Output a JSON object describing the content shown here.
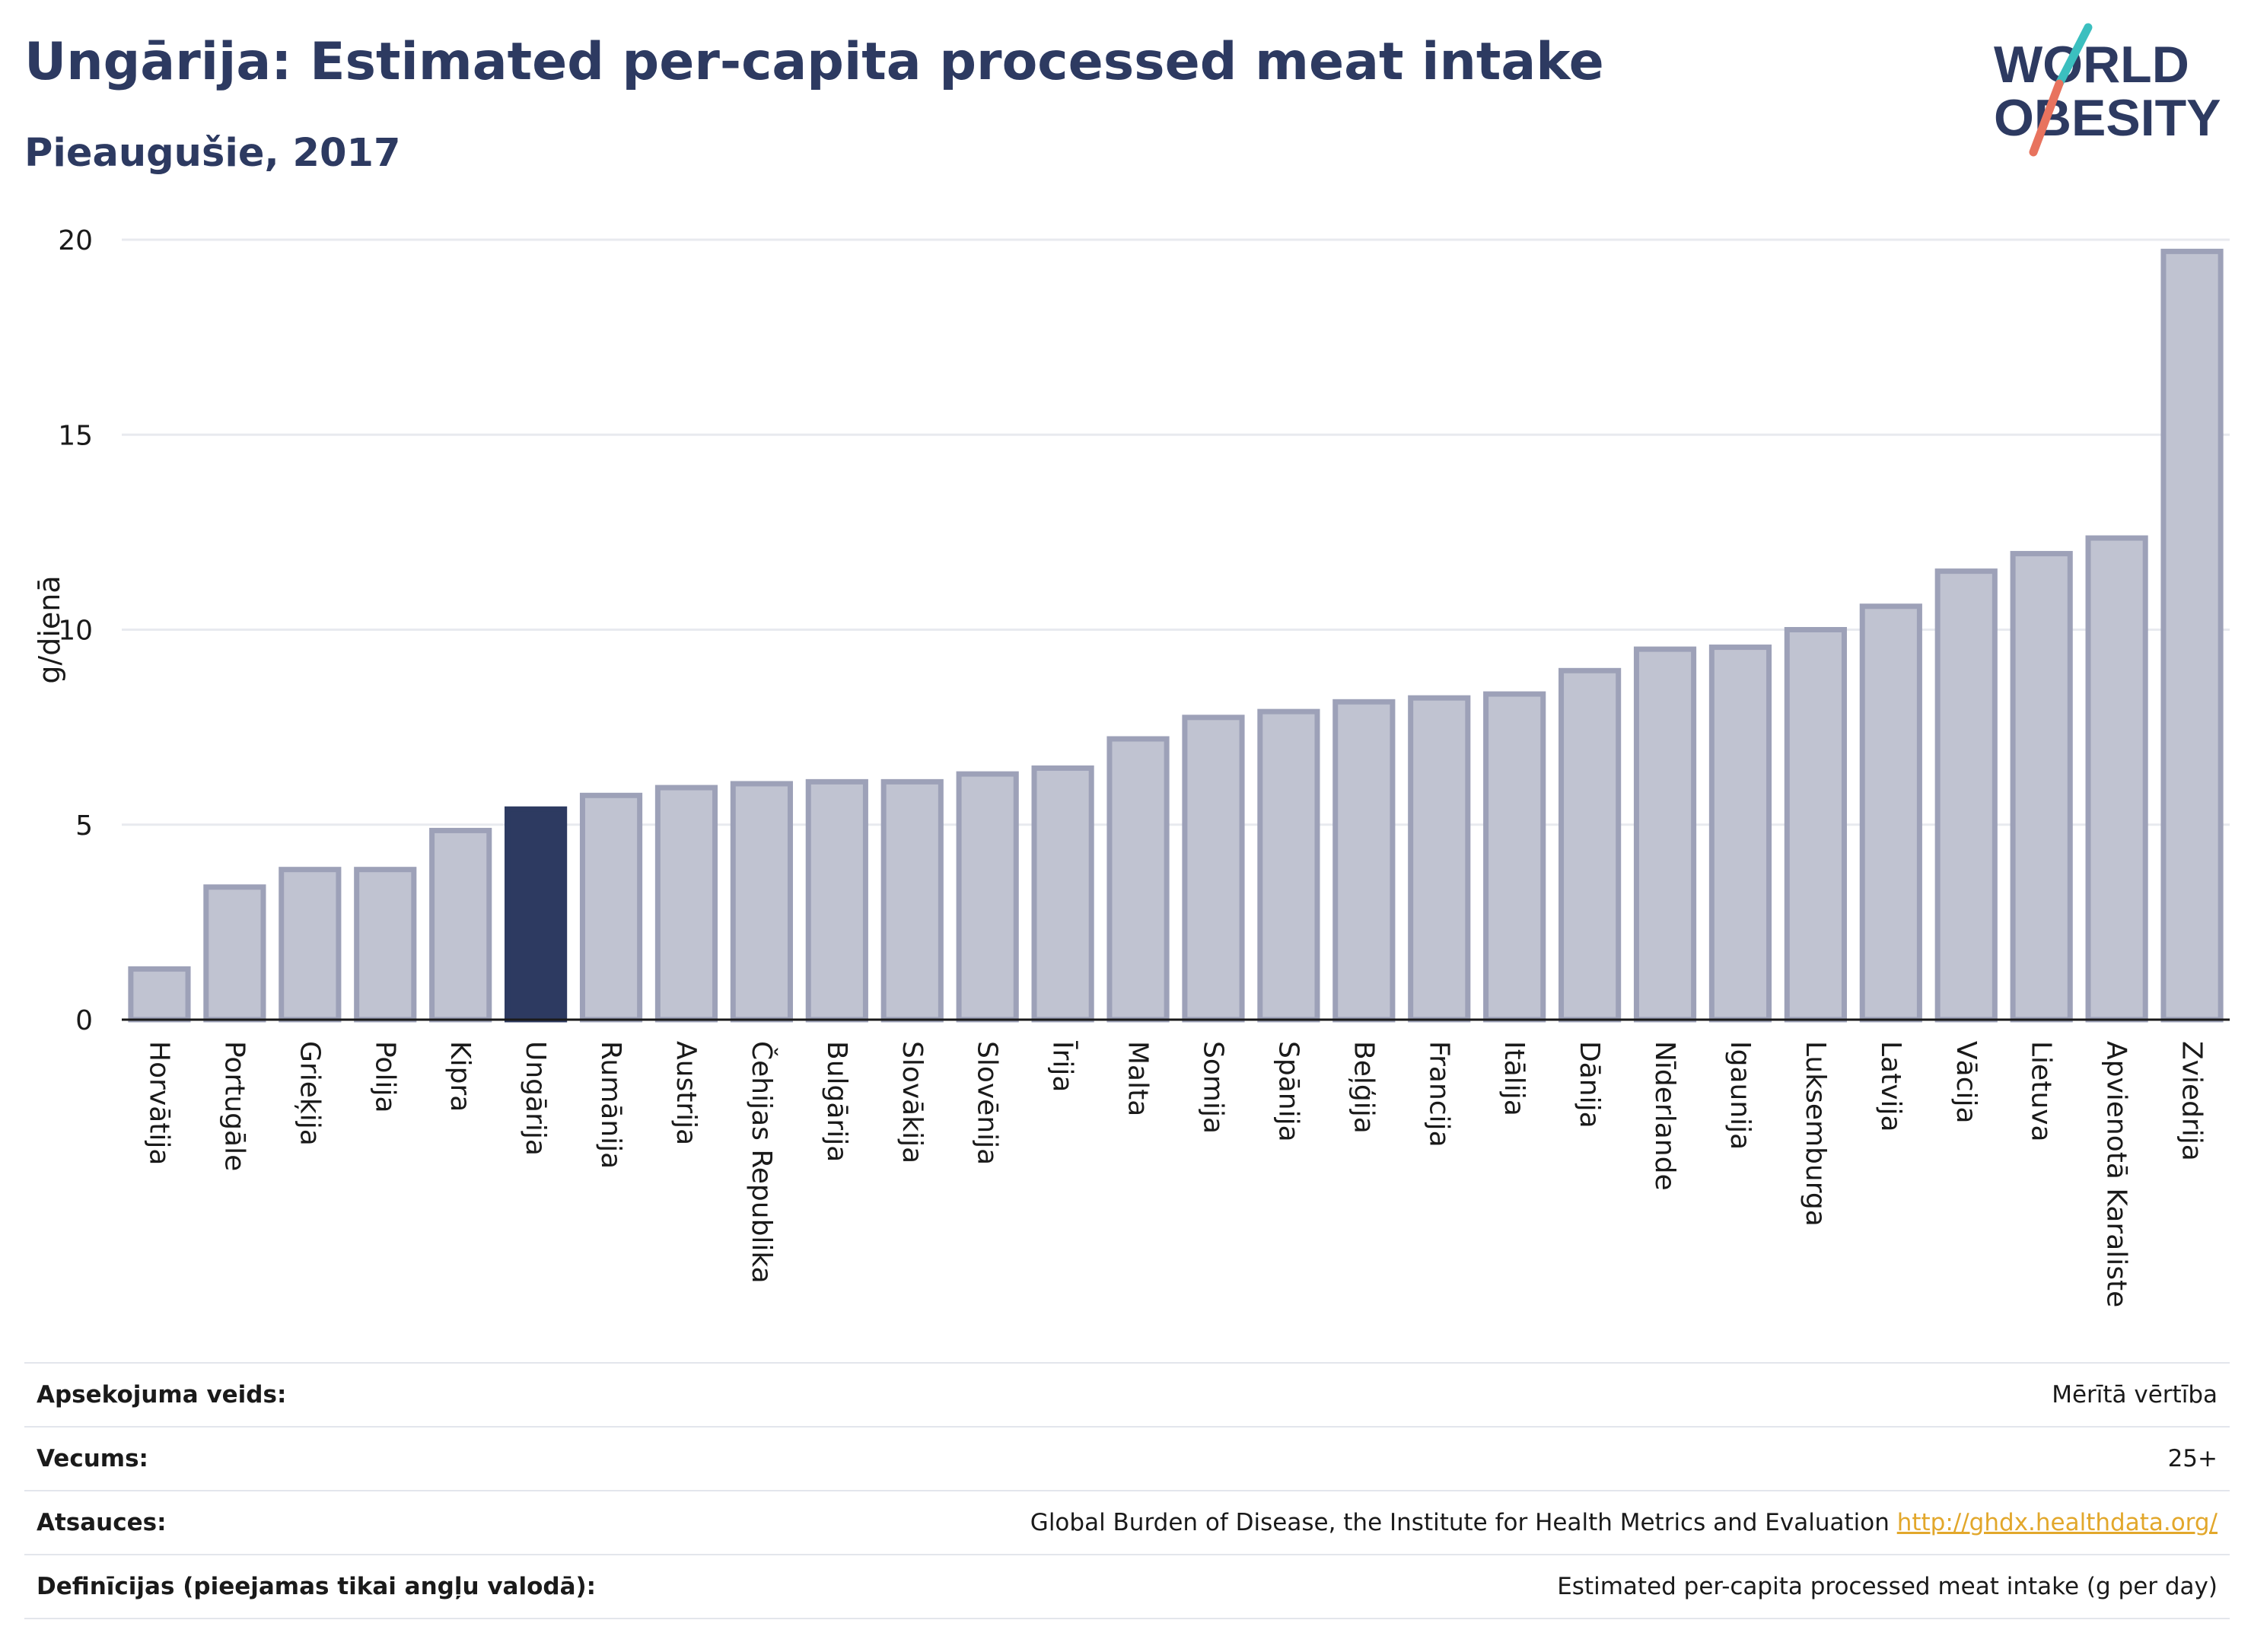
{
  "title": "Ungārija: Estimated per-capita processed meat intake",
  "subtitle": "Pieaugušie, 2017",
  "logo": {
    "line1": "WORLD",
    "line2": "OBESITY",
    "accent_colors": [
      "#3bbfbf",
      "#e8735e"
    ]
  },
  "colors": {
    "highlight": "#2d3a61",
    "bar_fill": "#c0c3d1",
    "bar_stroke": "#9da1b8",
    "grid": "#e8eaef"
  },
  "chart_data": {
    "type": "bar",
    "ylabel": "g/dienā",
    "ylim": [
      0,
      20
    ],
    "yticks": [
      0,
      5,
      10,
      15,
      20
    ],
    "grid": true,
    "highlight": "Ungārija",
    "categories": [
      "Horvātija",
      "Portugāle",
      "Grieķija",
      "Polija",
      "Kipra",
      "Ungārija",
      "Rumānija",
      "Austrija",
      "Čehijas Republika",
      "Bulgārija",
      "Slovākija",
      "Slovēnija",
      "Īrija",
      "Malta",
      "Somija",
      "Spānija",
      "Beļģija",
      "Francija",
      "Itālija",
      "Dānija",
      "Nīderlande",
      "Igaunija",
      "Luksemburga",
      "Latvija",
      "Vācija",
      "Lietuva",
      "Apvienotā Karaliste",
      "Zviedrija"
    ],
    "values": [
      1.3,
      3.4,
      3.85,
      3.85,
      4.85,
      5.4,
      5.75,
      5.95,
      6.05,
      6.1,
      6.1,
      6.3,
      6.45,
      7.2,
      7.75,
      7.9,
      8.15,
      8.25,
      8.35,
      8.95,
      9.5,
      9.55,
      10.0,
      10.6,
      11.5,
      11.95,
      12.35,
      19.7
    ]
  },
  "meta": [
    {
      "label": "Apsekojuma veids:",
      "value": "Mērītā vērtība"
    },
    {
      "label": "Vecums:",
      "value": "25+"
    },
    {
      "label": "Atsauces:",
      "value": "Global Burden of Disease, the Institute for Health Metrics and Evaluation",
      "link": "http://ghdx.healthdata.org/"
    },
    {
      "label": "Definīcijas (pieejamas tikai angļu valodā):",
      "value": "Estimated per-capita processed meat intake (g per day)"
    }
  ]
}
